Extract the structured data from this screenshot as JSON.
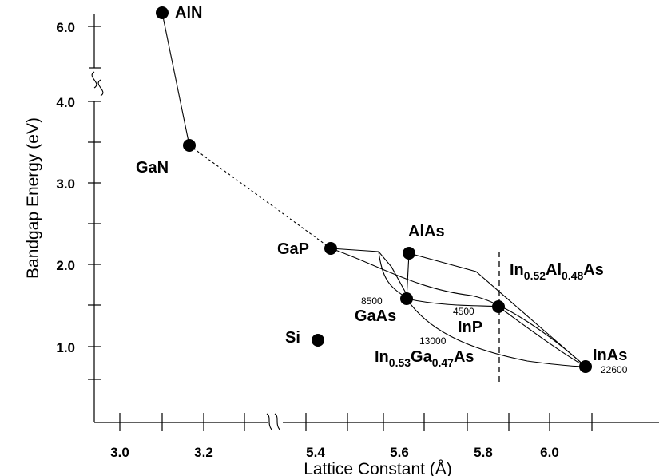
{
  "chart_data": {
    "type": "scatter",
    "xlabel": "Lattice Constant (Å)",
    "ylabel": "Bandgap Energy (eV)",
    "x_tick_labels": [
      "3.0",
      "3.2",
      "5.4",
      "5.6",
      "5.8",
      "6.0"
    ],
    "y_tick_labels": [
      "1.0",
      "2.0",
      "3.0",
      "4.0",
      "6.0"
    ],
    "x_axis_break": "between 3.2 and 5.4",
    "y_axis_break": "between 4.0 and 6.0",
    "points": [
      {
        "label": "AlN",
        "x": 3.11,
        "y": 6.2
      },
      {
        "label": "GaN",
        "x": 3.19,
        "y": 3.4
      },
      {
        "label": "GaP",
        "x": 5.45,
        "y": 2.26
      },
      {
        "label": "AlAs",
        "x": 5.66,
        "y": 2.16
      },
      {
        "label": "GaAs",
        "x": 5.65,
        "y": 1.42
      },
      {
        "label": "InP",
        "x": 5.87,
        "y": 1.35
      },
      {
        "label": "InAs",
        "x": 6.06,
        "y": 0.36
      },
      {
        "label": "Si",
        "x": 5.43,
        "y": 1.12
      }
    ],
    "annotations": {
      "gaas_value": "8500",
      "inp_value": "4500",
      "ingaas_value": "13000",
      "inas_value": "22600",
      "ingaas_label": {
        "pre": "In",
        "s1": "0.53",
        "mid": "Ga",
        "s2": "0.47",
        "post": "As"
      },
      "inalas_label": {
        "pre": "In",
        "s1": "0.52",
        "mid": "Al",
        "s2": "0.48",
        "post": "As"
      }
    }
  }
}
